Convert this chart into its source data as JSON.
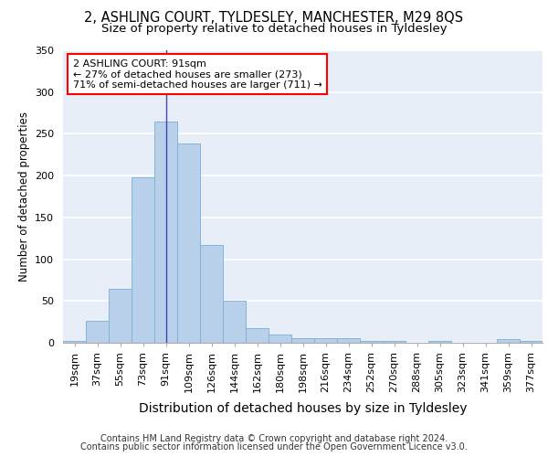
{
  "title1": "2, ASHLING COURT, TYLDESLEY, MANCHESTER, M29 8QS",
  "title2": "Size of property relative to detached houses in Tyldesley",
  "xlabel": "Distribution of detached houses by size in Tyldesley",
  "ylabel": "Number of detached properties",
  "categories": [
    "19sqm",
    "37sqm",
    "55sqm",
    "73sqm",
    "91sqm",
    "109sqm",
    "126sqm",
    "144sqm",
    "162sqm",
    "180sqm",
    "198sqm",
    "216sqm",
    "234sqm",
    "252sqm",
    "270sqm",
    "288sqm",
    "305sqm",
    "323sqm",
    "341sqm",
    "359sqm",
    "377sqm"
  ],
  "bar_heights": [
    2,
    26,
    65,
    198,
    265,
    238,
    117,
    50,
    18,
    10,
    6,
    5,
    5,
    2,
    2,
    0,
    2,
    0,
    0,
    4,
    2
  ],
  "bar_color": "#b8d0ea",
  "bar_edge_color": "#7aaed4",
  "property_bin_index": 4,
  "annotation_text": "2 ASHLING COURT: 91sqm\n← 27% of detached houses are smaller (273)\n71% of semi-detached houses are larger (711) →",
  "annotation_box_color": "white",
  "annotation_box_edge": "red",
  "vline_color": "#4444aa",
  "ylim": [
    0,
    350
  ],
  "yticks": [
    0,
    50,
    100,
    150,
    200,
    250,
    300,
    350
  ],
  "footer1": "Contains HM Land Registry data © Crown copyright and database right 2024.",
  "footer2": "Contains public sector information licensed under the Open Government Licence v3.0.",
  "bg_color": "#e8eef8",
  "grid_color": "#ffffff",
  "title1_fontsize": 10.5,
  "title2_fontsize": 9.5,
  "xlabel_fontsize": 10,
  "ylabel_fontsize": 8.5,
  "tick_fontsize": 8,
  "footer_fontsize": 7,
  "annot_fontsize": 8
}
